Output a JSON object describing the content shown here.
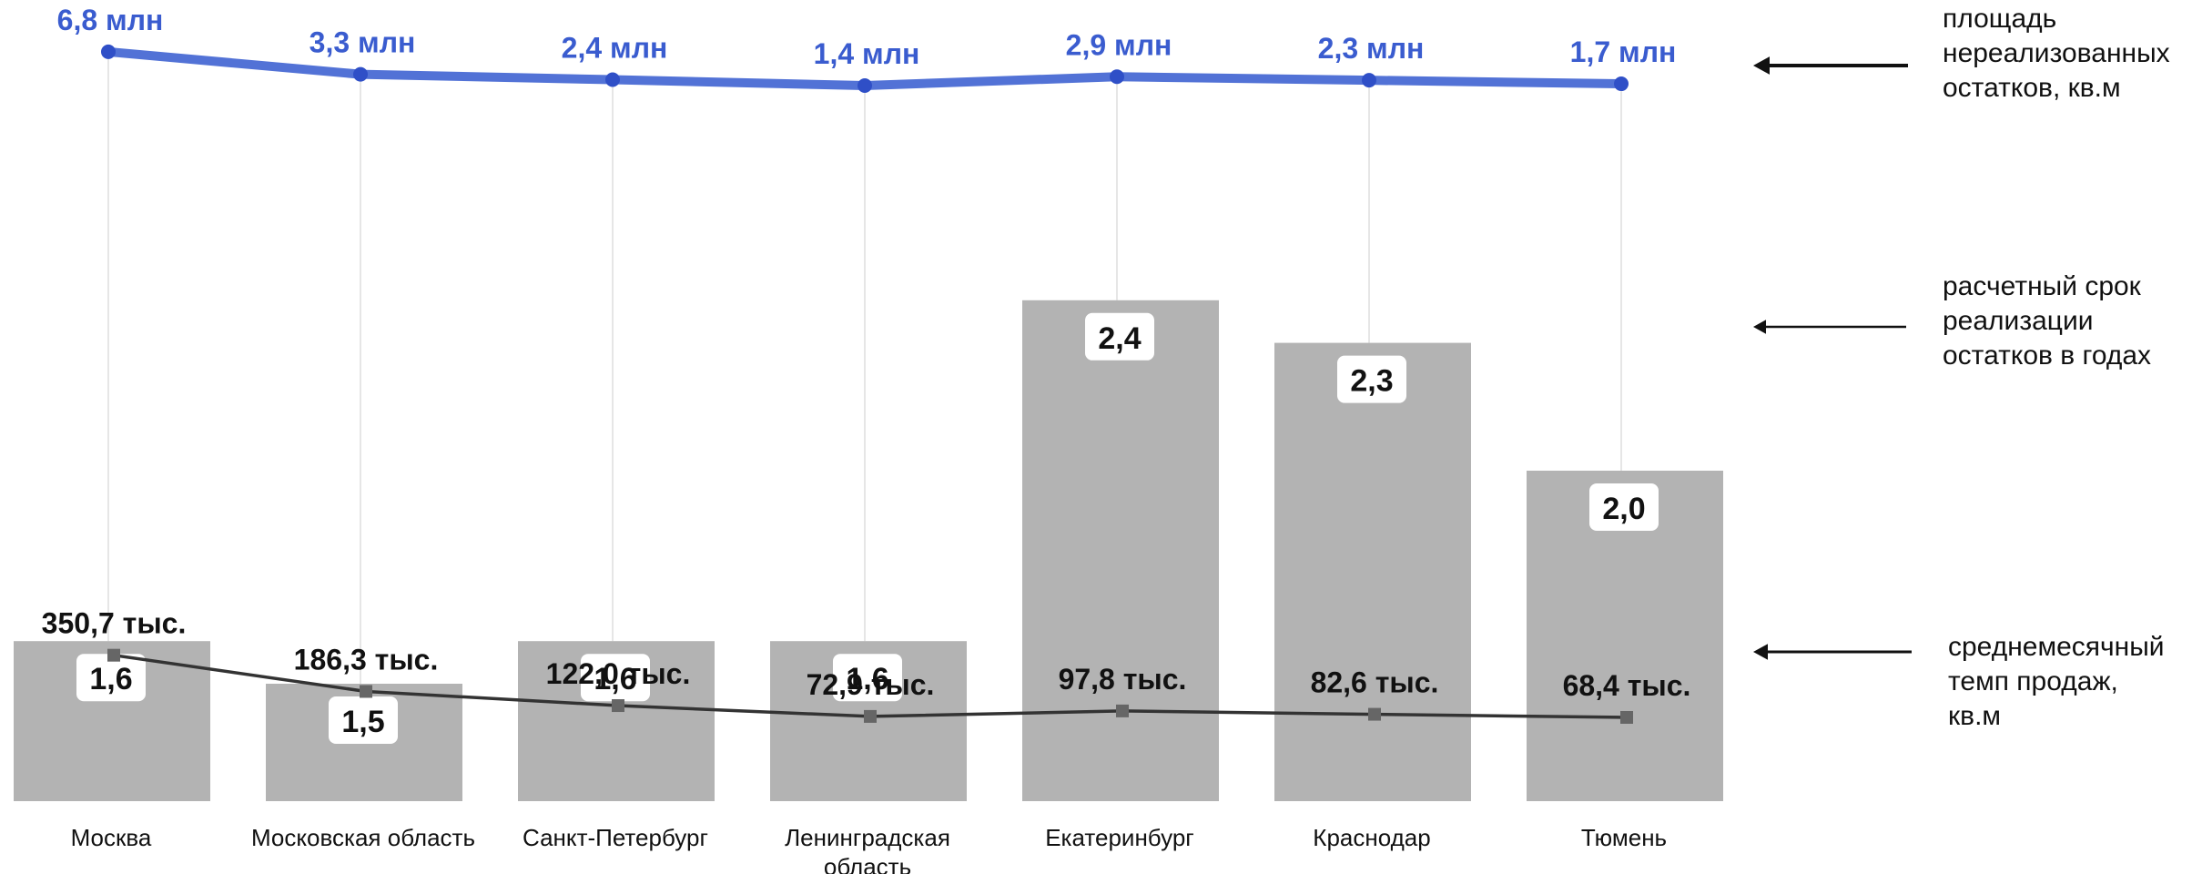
{
  "chart_data": {
    "type": "bar",
    "categories": [
      "Москва",
      "Московская область",
      "Санкт-Петербург",
      "Ленинградская область",
      "Екатеринбург",
      "Краснодар",
      "Тюмень"
    ],
    "category_lines": [
      [
        "Москва"
      ],
      [
        "Московская область"
      ],
      [
        "Санкт-Петербург"
      ],
      [
        "Ленинградская",
        "область"
      ],
      [
        "Екатеринбург"
      ],
      [
        "Краснодар"
      ],
      [
        "Тюмень"
      ]
    ],
    "series": [
      {
        "name": "расчетный срок реализации остатков в годах",
        "kind": "bar",
        "values": [
          1.6,
          1.5,
          1.6,
          1.6,
          2.4,
          2.3,
          2.0
        ],
        "labels": [
          "1,6",
          "1,5",
          "1,6",
          "1,6",
          "2,4",
          "2,3",
          "2,0"
        ],
        "color": "#b3b3b3"
      },
      {
        "name": "площадь нереализованных остатков, кв.м",
        "kind": "line",
        "values": [
          6.8,
          3.3,
          2.4,
          1.4,
          2.9,
          2.3,
          1.7
        ],
        "unit": "млн",
        "labels": [
          "6,8 млн",
          "3,3 млн",
          "2,4 млн",
          "1,4 млн",
          "2,9 млн",
          "2,3 млн",
          "1,7 млн"
        ],
        "color": "#3a5ccf"
      },
      {
        "name": "среднемесячный темп продаж, кв.м",
        "kind": "line",
        "values": [
          350.7,
          186.3,
          122.0,
          72.9,
          97.8,
          82.6,
          68.4
        ],
        "unit": "тыс.",
        "labels": [
          "350,7 тыс.",
          "186,3 тыс.",
          "122,0 тыс.",
          "72,9 тыс.",
          "97,8 тыс.",
          "82,6 тыс.",
          "68,4 тыс."
        ],
        "color": "#333333"
      }
    ],
    "legend": [
      {
        "lines": [
          "площадь",
          "нереализованных",
          "остатков, кв.м"
        ],
        "series": 1
      },
      {
        "lines": [
          "расчетный срок",
          "реализации",
          "остатков в годах"
        ],
        "series": 0
      },
      {
        "lines": [
          "среднемесячный",
          "темп продаж,",
          "кв.м"
        ],
        "series": 2
      }
    ],
    "legend_position": "right",
    "grid": false
  }
}
